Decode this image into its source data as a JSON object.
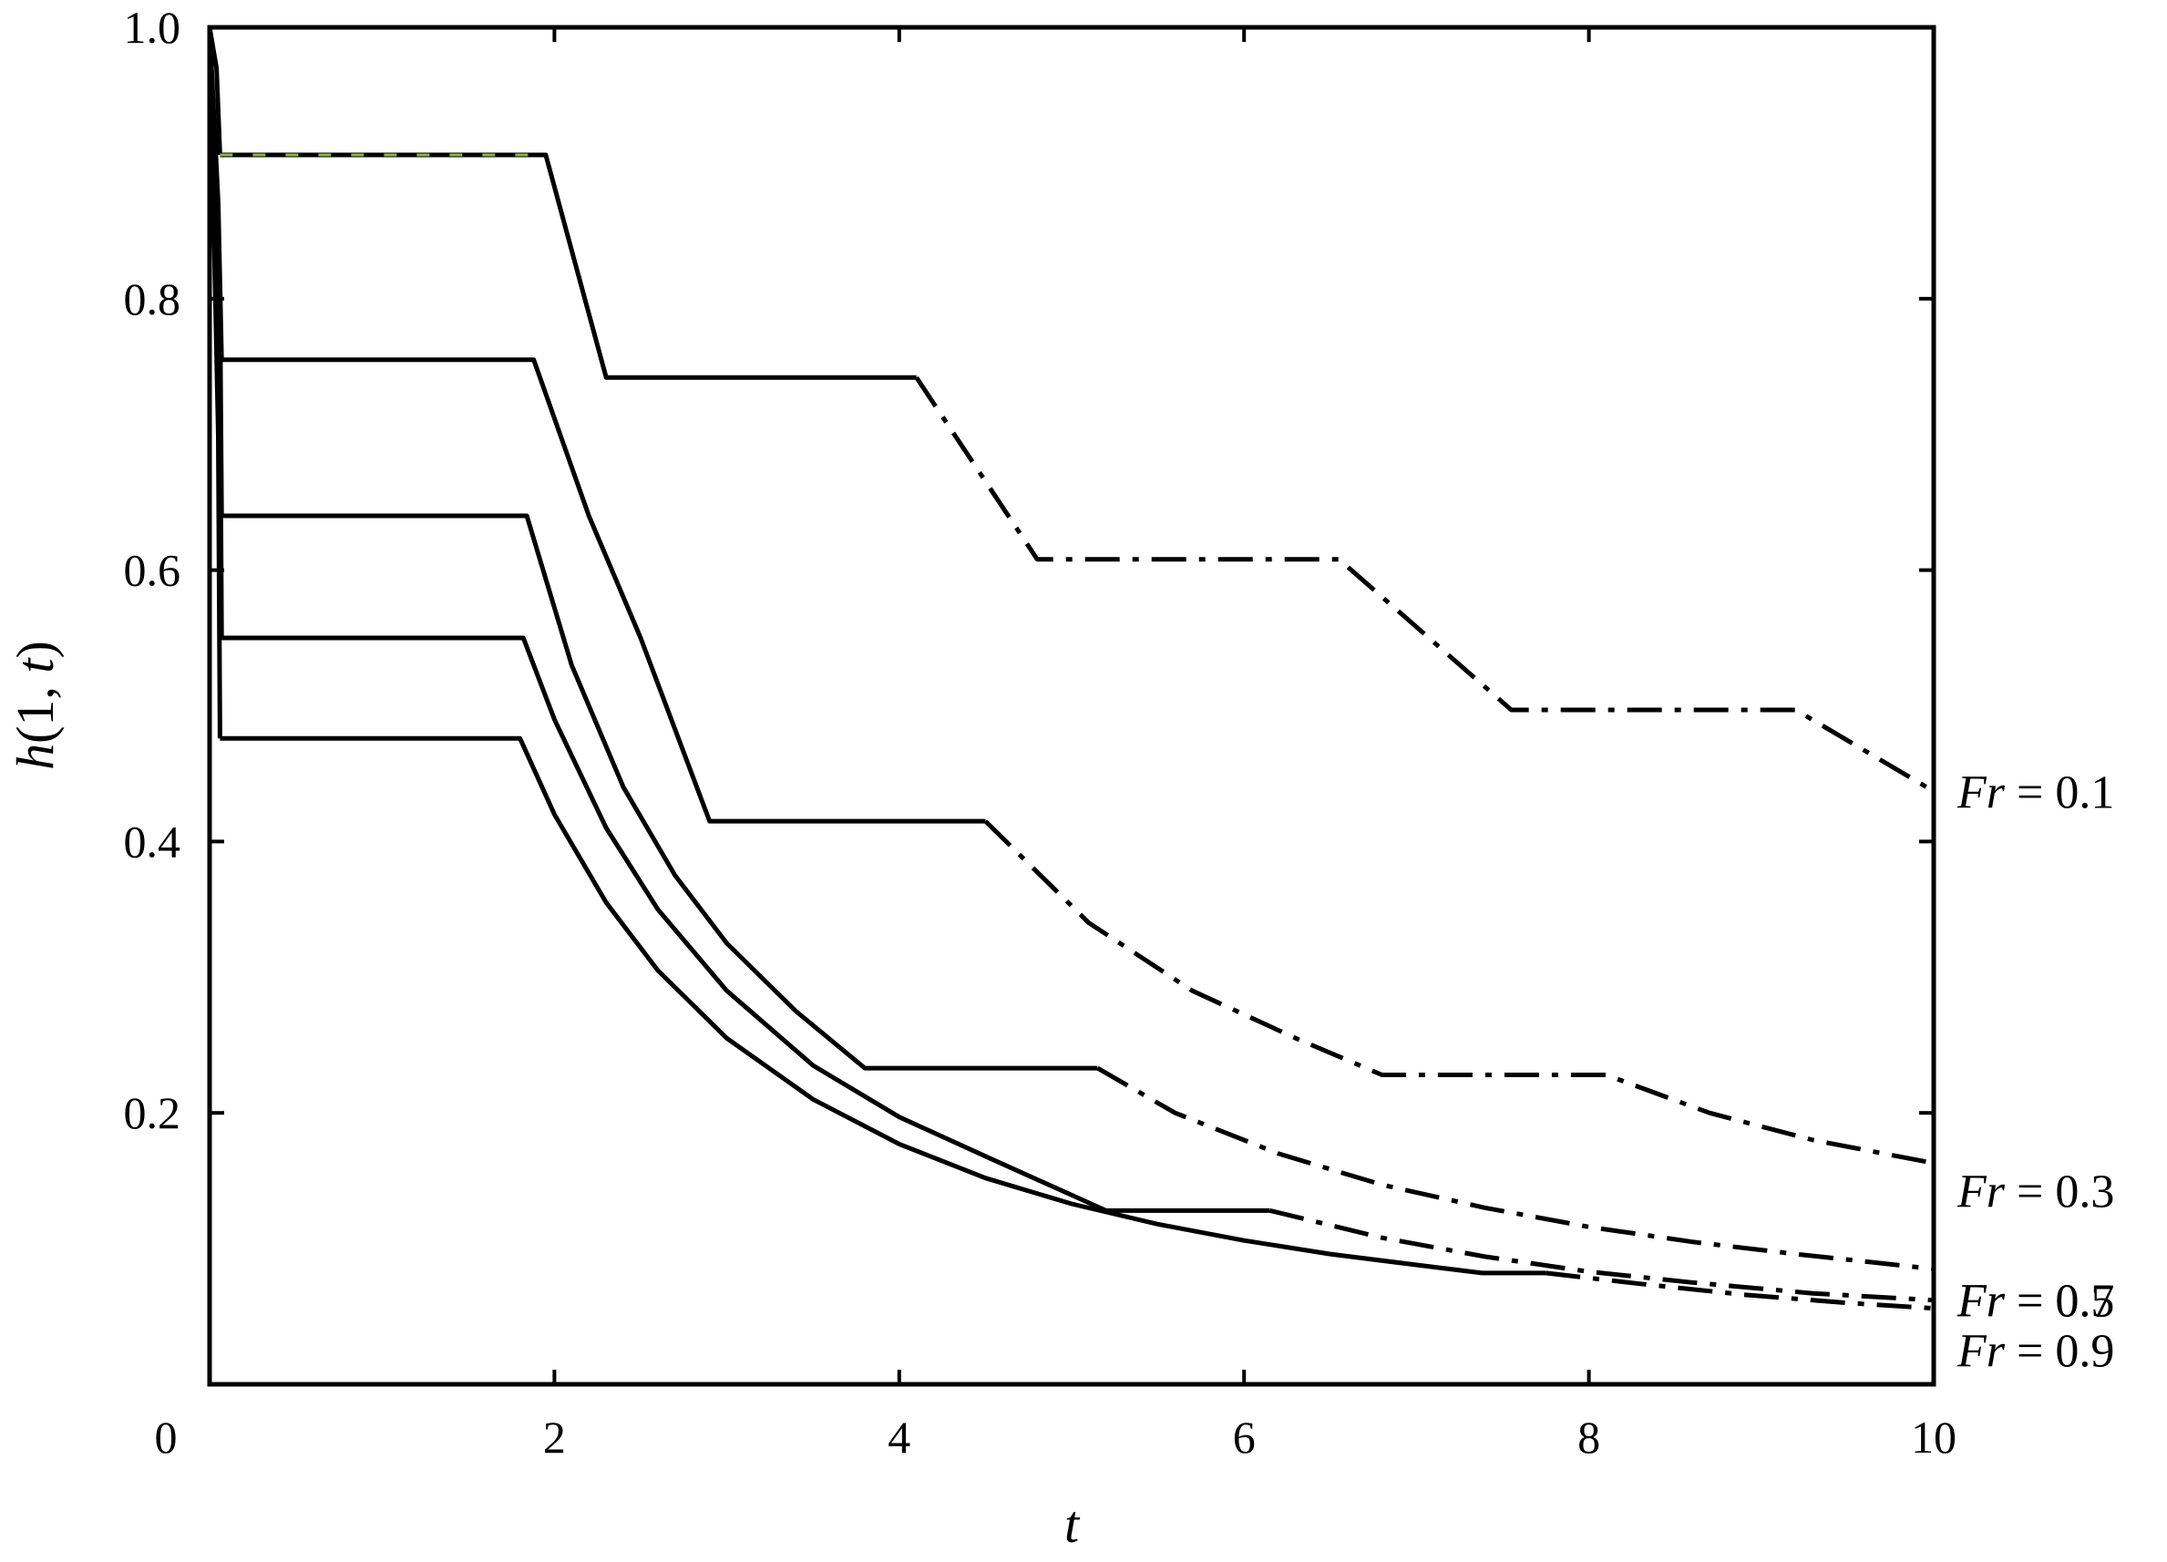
{
  "chart_data": {
    "type": "line",
    "xlabel": "t",
    "ylabel": "h(1, t)",
    "xlim": [
      0,
      10
    ],
    "ylim": [
      0,
      1.0
    ],
    "x_ticks": [
      0,
      2,
      4,
      6,
      8,
      10
    ],
    "y_ticks": [
      0.2,
      0.4,
      0.6,
      0.8,
      1.0
    ],
    "x_tick_labels": [
      "0",
      "2",
      "4",
      "6",
      "8",
      "10"
    ],
    "y_tick_labels": [
      "0.2",
      "0.4",
      "0.6",
      "0.8",
      "1.0"
    ],
    "grid": false,
    "series": [
      {
        "name": "Fr = 0.1",
        "label_main": "Fr",
        "label_rest": " = 0.1",
        "color": "#000000",
        "segments": [
          {
            "style": "solid",
            "points": [
              [
                0.0,
                1.0
              ],
              [
                0.04,
                0.97
              ],
              [
                0.06,
                0.906
              ]
            ]
          },
          {
            "style": "solid",
            "points": [
              [
                0.06,
                0.906
              ],
              [
                1.95,
                0.906
              ],
              [
                2.3,
                0.742
              ],
              [
                4.1,
                0.742
              ]
            ]
          },
          {
            "style": "dashdot",
            "points": [
              [
                4.1,
                0.742
              ],
              [
                4.8,
                0.608
              ],
              [
                6.55,
                0.608
              ],
              [
                7.55,
                0.497
              ],
              [
                9.2,
                0.497
              ],
              [
                10.0,
                0.437
              ]
            ]
          }
        ]
      },
      {
        "name": "Fr = 0.3",
        "label_main": "Fr",
        "label_rest": " = 0.3",
        "color": "#000000",
        "segments": [
          {
            "style": "solid",
            "points": [
              [
                0.0,
                1.0
              ],
              [
                0.05,
                0.87
              ],
              [
                0.07,
                0.755
              ]
            ]
          },
          {
            "style": "solid",
            "points": [
              [
                0.07,
                0.755
              ],
              [
                1.88,
                0.755
              ],
              [
                2.2,
                0.64
              ],
              [
                2.5,
                0.55
              ],
              [
                2.9,
                0.415
              ],
              [
                4.5,
                0.415
              ]
            ]
          },
          {
            "style": "dashdot",
            "points": [
              [
                4.5,
                0.415
              ],
              [
                5.1,
                0.34
              ],
              [
                5.7,
                0.29
              ],
              [
                6.3,
                0.255
              ],
              [
                6.8,
                0.228
              ],
              [
                8.1,
                0.228
              ],
              [
                8.7,
                0.2
              ],
              [
                9.3,
                0.18
              ],
              [
                10.0,
                0.163
              ]
            ]
          }
        ]
      },
      {
        "name": "Fr = 0.5",
        "label_main": "Fr",
        "label_rest": " = 0.5",
        "color": "#000000",
        "segments": [
          {
            "style": "solid",
            "points": [
              [
                0.0,
                1.0
              ],
              [
                0.06,
                0.8
              ],
              [
                0.07,
                0.64
              ]
            ]
          },
          {
            "style": "solid",
            "points": [
              [
                0.07,
                0.64
              ],
              [
                1.84,
                0.64
              ],
              [
                2.1,
                0.53
              ],
              [
                2.4,
                0.44
              ],
              [
                2.7,
                0.375
              ],
              [
                3.0,
                0.325
              ],
              [
                3.4,
                0.275
              ],
              [
                3.8,
                0.233
              ],
              [
                5.15,
                0.233
              ]
            ]
          },
          {
            "style": "dashdot",
            "points": [
              [
                5.15,
                0.233
              ],
              [
                5.6,
                0.2
              ],
              [
                6.2,
                0.17
              ],
              [
                6.8,
                0.147
              ],
              [
                7.4,
                0.13
              ],
              [
                8.0,
                0.116
              ],
              [
                8.6,
                0.105
              ],
              [
                9.2,
                0.096
              ],
              [
                10.0,
                0.085
              ]
            ]
          }
        ]
      },
      {
        "name": "Fr = 0.7",
        "label_main": "Fr",
        "label_rest": " = 0.7",
        "color": "#000000",
        "segments": [
          {
            "style": "solid",
            "points": [
              [
                0.0,
                1.0
              ],
              [
                0.06,
                0.75
              ],
              [
                0.07,
                0.55
              ]
            ]
          },
          {
            "style": "solid",
            "points": [
              [
                0.07,
                0.55
              ],
              [
                1.82,
                0.55
              ],
              [
                2.0,
                0.49
              ],
              [
                2.3,
                0.41
              ],
              [
                2.6,
                0.35
              ],
              [
                3.0,
                0.29
              ],
              [
                3.5,
                0.235
              ],
              [
                4.0,
                0.197
              ],
              [
                4.5,
                0.168
              ],
              [
                5.2,
                0.128
              ],
              [
                6.15,
                0.128
              ]
            ]
          },
          {
            "style": "dashdot",
            "points": [
              [
                6.15,
                0.128
              ],
              [
                6.8,
                0.108
              ],
              [
                7.4,
                0.094
              ],
              [
                8.0,
                0.083
              ],
              [
                8.6,
                0.075
              ],
              [
                9.3,
                0.067
              ],
              [
                10.0,
                0.062
              ]
            ]
          }
        ]
      },
      {
        "name": "Fr = 0.9",
        "label_main": "Fr",
        "label_rest": " = 0.9",
        "color": "#000000",
        "segments": [
          {
            "style": "solid",
            "points": [
              [
                0.0,
                1.0
              ],
              [
                0.05,
                0.7
              ],
              [
                0.06,
                0.476
              ]
            ]
          },
          {
            "style": "solid",
            "points": [
              [
                0.06,
                0.476
              ],
              [
                1.8,
                0.476
              ],
              [
                2.0,
                0.42
              ],
              [
                2.3,
                0.355
              ],
              [
                2.6,
                0.305
              ],
              [
                3.0,
                0.255
              ],
              [
                3.5,
                0.21
              ],
              [
                4.0,
                0.177
              ],
              [
                4.5,
                0.152
              ],
              [
                5.0,
                0.133
              ],
              [
                5.5,
                0.118
              ],
              [
                6.0,
                0.106
              ],
              [
                6.5,
                0.096
              ],
              [
                7.0,
                0.088
              ],
              [
                7.38,
                0.082
              ],
              [
                7.75,
                0.082
              ]
            ]
          },
          {
            "style": "dashdot",
            "points": [
              [
                7.75,
                0.082
              ],
              [
                8.3,
                0.074
              ],
              [
                8.9,
                0.066
              ],
              [
                9.5,
                0.06
              ],
              [
                10.0,
                0.056
              ]
            ]
          }
        ]
      }
    ],
    "highlight_color": "#8fb84a"
  }
}
